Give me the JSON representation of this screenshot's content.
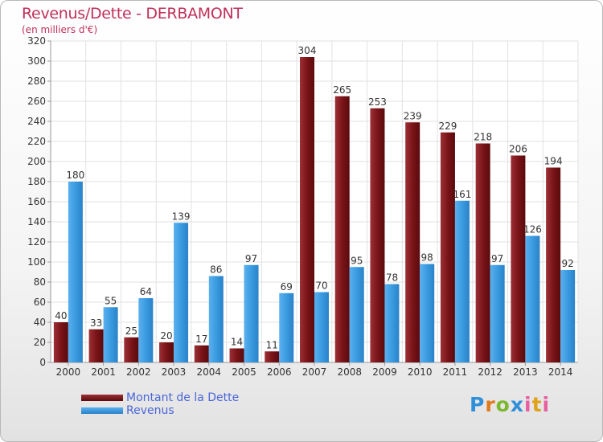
{
  "chart_data": {
    "type": "bar",
    "title": "Revenus/Dette - DERBAMONT",
    "subtitle": "(en milliers d'€)",
    "categories": [
      "2000",
      "2001",
      "2002",
      "2003",
      "2004",
      "2005",
      "2006",
      "2007",
      "2008",
      "2009",
      "2010",
      "2011",
      "2012",
      "2013",
      "2014"
    ],
    "series": [
      {
        "name": "Montant de la Dette",
        "color": "#7a1418",
        "values": [
          40,
          33,
          25,
          20,
          17,
          14,
          11,
          304,
          265,
          253,
          239,
          229,
          218,
          206,
          194
        ]
      },
      {
        "name": "Revenus",
        "color": "#3b9be0",
        "values": [
          180,
          55,
          64,
          139,
          86,
          97,
          69,
          70,
          95,
          78,
          98,
          161,
          97,
          126,
          92
        ]
      }
    ],
    "ylim": [
      0,
      320
    ],
    "ytick_step": 20,
    "grid": true,
    "legend": "bottom-left"
  },
  "logo": {
    "text": "Proxiti"
  }
}
